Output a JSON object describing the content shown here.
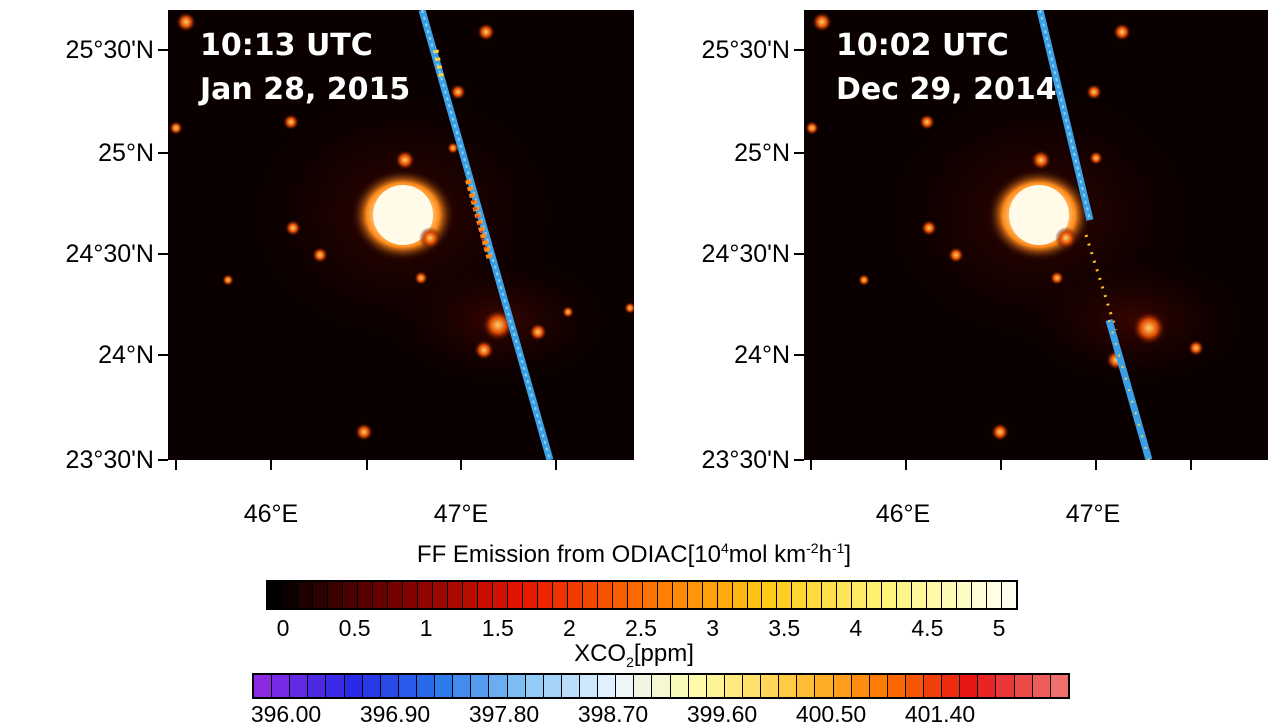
{
  "panels": [
    {
      "time": "10:13 UTC",
      "date": "Jan 28, 2015"
    },
    {
      "time": "10:02 UTC",
      "date": "Dec 29, 2014"
    }
  ],
  "lat_labels": [
    "25°30'N",
    "25°N",
    "24°30'N",
    "24°N",
    "23°30'N"
  ],
  "lon_labels": [
    "46°E",
    "47°E"
  ],
  "emission_colorbar": {
    "title_prefix": "FF Emission from ODIAC[10",
    "title_sup1": "4",
    "title_mid": "mol km",
    "title_sup2": "-2",
    "title_mid2": "h",
    "title_sup3": "-1",
    "title_suffix": "]",
    "tick_labels": [
      "0",
      "0.5",
      "1",
      "1.5",
      "2",
      "2.5",
      "3",
      "3.5",
      "4",
      "4.5",
      "5"
    ]
  },
  "xco2_colorbar": {
    "title_prefix": "XCO",
    "title_sub": "2",
    "title_suffix": "[ppm]",
    "tick_labels": [
      "396.00",
      "396.90",
      "397.80",
      "398.70",
      "399.60",
      "400.50",
      "401.40"
    ]
  },
  "colors": {
    "map_background": "#0a0000",
    "city_glow": "#fffbe8"
  }
}
